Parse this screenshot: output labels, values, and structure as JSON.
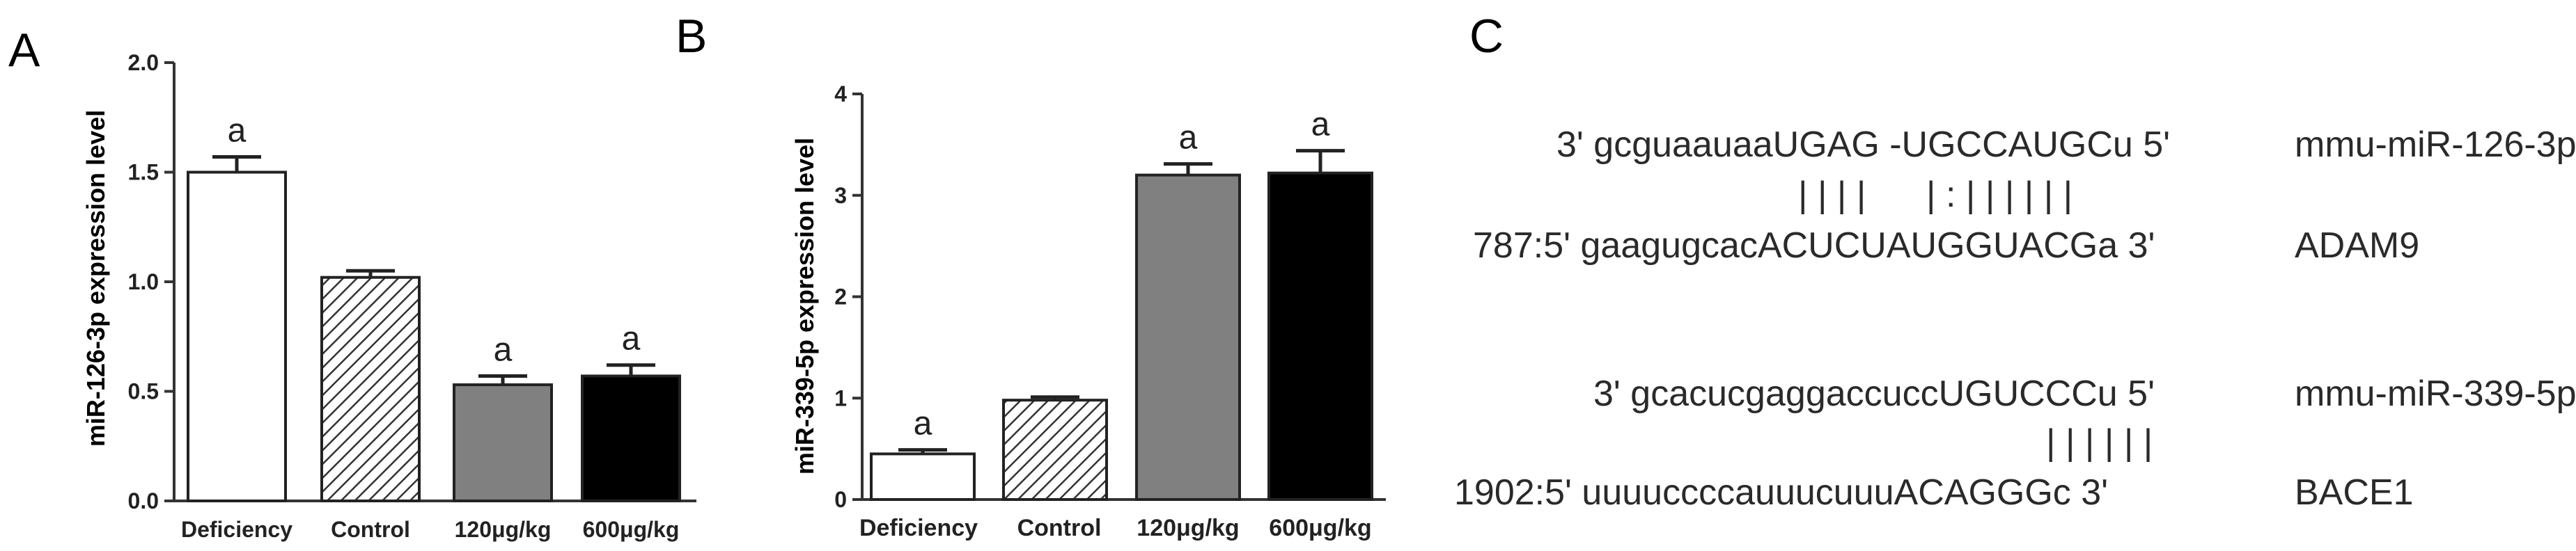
{
  "panels": {
    "a": "A",
    "b": "B",
    "c": "C"
  },
  "chart_data": [
    {
      "type": "bar",
      "panel": "A",
      "categories": [
        "Deficiency",
        "Control",
        "120μg/kg",
        "600μg/kg"
      ],
      "values": [
        1.5,
        1.02,
        0.53,
        0.57
      ],
      "errors": [
        0.07,
        0.03,
        0.04,
        0.05
      ],
      "annotations": [
        "a",
        "",
        "a",
        "a"
      ],
      "fills": [
        "#ffffff",
        "hatch",
        "#808080",
        "#000000"
      ],
      "ylabel": "miR-126-3p expression level",
      "xlabel": "",
      "title": "",
      "ylim": [
        0,
        2.0
      ],
      "yticks": [
        0.0,
        0.5,
        1.0,
        1.5,
        2.0
      ],
      "ytick_labels": [
        "0.0",
        "0.5",
        "1.0",
        "1.5",
        "2.0"
      ]
    },
    {
      "type": "bar",
      "panel": "B",
      "categories": [
        "Deficiency",
        "Control",
        "120μg/kg",
        "600μg/kg"
      ],
      "values": [
        0.45,
        0.98,
        3.2,
        3.22
      ],
      "errors": [
        0.04,
        0.03,
        0.11,
        0.22
      ],
      "annotations": [
        "a",
        "",
        "a",
        "a"
      ],
      "fills": [
        "#ffffff",
        "hatch",
        "#808080",
        "#000000"
      ],
      "ylabel": "miR-339-5p expression level",
      "xlabel": "",
      "title": "",
      "ylim": [
        0,
        4
      ],
      "yticks": [
        0,
        1,
        2,
        3,
        4
      ],
      "ytick_labels": [
        "0",
        "1",
        "2",
        "3",
        "4"
      ]
    }
  ],
  "alignments": [
    {
      "mirna_seq": "3' gcguaauaaUGAG -UGCCAUGCu 5'",
      "mirna_name": "mmu-miR-126-3p",
      "pairing": "| | | |      | : | | | | | |",
      "target_seq": "787:5' gaagugcacACUCUAUGGUACGa 3'",
      "target_name": "ADAM9"
    },
    {
      "mirna_seq": "3' gcacucgaggaccuccUGUCCCu 5'",
      "mirna_name": "mmu-miR-339-5p",
      "pairing": "| | | | | |",
      "target_seq": "1902:5' uuuuccccauuucuuuACAGGGc 3'",
      "target_name": "BACE1"
    }
  ]
}
